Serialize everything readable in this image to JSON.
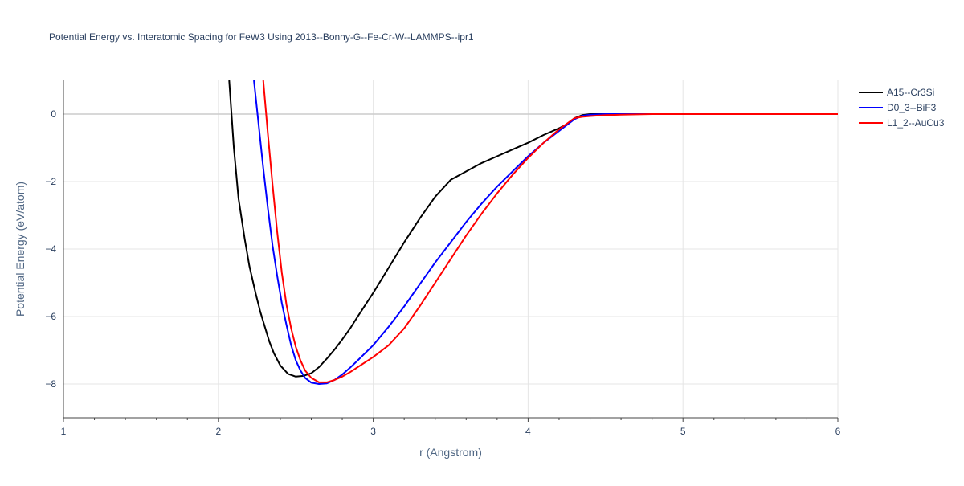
{
  "chart_data": {
    "type": "line",
    "title": "Potential Energy vs. Interatomic Spacing for FeW3 Using 2013--Bonny-G--Fe-Cr-W--LAMMPS--ipr1",
    "xlabel": "r (Angstrom)",
    "ylabel": "Potential Energy (eV/atom)",
    "xlim": [
      1,
      6
    ],
    "ylim": [
      -9,
      1
    ],
    "x_ticks": [
      "1",
      "2",
      "3",
      "4",
      "5",
      "6"
    ],
    "y_ticks": [
      "0",
      "−2",
      "−4",
      "−6",
      "−8"
    ],
    "x_tick_values": [
      1,
      2,
      3,
      4,
      5,
      6
    ],
    "y_tick_values": [
      0,
      -2,
      -4,
      -6,
      -8
    ],
    "grid": true,
    "legend_position": "top-right",
    "series": [
      {
        "name": "A15--Cr3Si",
        "color": "#000000",
        "x": [
          2.07,
          2.1,
          2.13,
          2.17,
          2.2,
          2.24,
          2.27,
          2.3,
          2.33,
          2.36,
          2.4,
          2.45,
          2.5,
          2.55,
          2.6,
          2.65,
          2.7,
          2.75,
          2.8,
          2.85,
          2.9,
          3.0,
          3.1,
          3.2,
          3.3,
          3.4,
          3.5,
          3.6,
          3.7,
          3.8,
          3.9,
          4.0,
          4.1,
          4.2,
          4.25,
          4.3,
          4.35,
          4.4,
          4.5,
          4.6,
          4.7,
          4.8,
          5.0,
          5.5,
          6.0
        ],
        "y": [
          1.0,
          -1.0,
          -2.5,
          -3.7,
          -4.5,
          -5.3,
          -5.85,
          -6.3,
          -6.75,
          -7.1,
          -7.45,
          -7.7,
          -7.78,
          -7.76,
          -7.68,
          -7.5,
          -7.25,
          -6.98,
          -6.68,
          -6.36,
          -6.0,
          -5.3,
          -4.55,
          -3.8,
          -3.1,
          -2.45,
          -1.95,
          -1.7,
          -1.45,
          -1.25,
          -1.05,
          -0.85,
          -0.62,
          -0.42,
          -0.3,
          -0.12,
          -0.03,
          0.0,
          0.0,
          0.0,
          0.0,
          0.0,
          0.0,
          0.0,
          0.0
        ]
      },
      {
        "name": "D0_3--BiF3",
        "color": "#0000ff",
        "x": [
          2.23,
          2.26,
          2.29,
          2.32,
          2.35,
          2.38,
          2.41,
          2.44,
          2.47,
          2.5,
          2.53,
          2.56,
          2.6,
          2.65,
          2.7,
          2.75,
          2.8,
          2.85,
          2.9,
          3.0,
          3.1,
          3.2,
          3.3,
          3.4,
          3.5,
          3.6,
          3.7,
          3.8,
          3.9,
          4.0,
          4.1,
          4.2,
          4.3,
          4.35,
          4.4,
          4.5,
          4.6,
          4.7,
          4.8,
          5.0,
          5.5,
          6.0
        ],
        "y": [
          1.0,
          -0.3,
          -1.6,
          -2.8,
          -3.9,
          -4.8,
          -5.6,
          -6.25,
          -6.85,
          -7.3,
          -7.6,
          -7.82,
          -7.96,
          -8.0,
          -7.98,
          -7.88,
          -7.72,
          -7.52,
          -7.3,
          -6.85,
          -6.3,
          -5.7,
          -5.05,
          -4.4,
          -3.8,
          -3.2,
          -2.65,
          -2.15,
          -1.7,
          -1.25,
          -0.85,
          -0.5,
          -0.15,
          -0.05,
          -0.02,
          0.0,
          0.0,
          0.0,
          0.0,
          0.0,
          0.0,
          0.0
        ]
      },
      {
        "name": "L1_2--AuCu3",
        "color": "#ff0000",
        "x": [
          2.29,
          2.32,
          2.35,
          2.38,
          2.41,
          2.44,
          2.47,
          2.5,
          2.53,
          2.56,
          2.6,
          2.65,
          2.7,
          2.75,
          2.8,
          2.85,
          2.9,
          3.0,
          3.1,
          3.2,
          3.3,
          3.4,
          3.5,
          3.6,
          3.7,
          3.8,
          3.9,
          4.0,
          4.1,
          4.2,
          4.3,
          4.35,
          4.4,
          4.5,
          4.6,
          4.7,
          4.8,
          5.0,
          5.5,
          6.0
        ],
        "y": [
          1.0,
          -0.6,
          -2.1,
          -3.5,
          -4.7,
          -5.65,
          -6.35,
          -6.9,
          -7.3,
          -7.6,
          -7.82,
          -7.95,
          -7.95,
          -7.88,
          -7.78,
          -7.65,
          -7.5,
          -7.2,
          -6.85,
          -6.35,
          -5.7,
          -5.0,
          -4.3,
          -3.6,
          -2.95,
          -2.35,
          -1.8,
          -1.3,
          -0.85,
          -0.45,
          -0.12,
          -0.08,
          -0.06,
          -0.03,
          -0.02,
          -0.01,
          0.0,
          0.0,
          0.0,
          0.0
        ]
      }
    ]
  }
}
